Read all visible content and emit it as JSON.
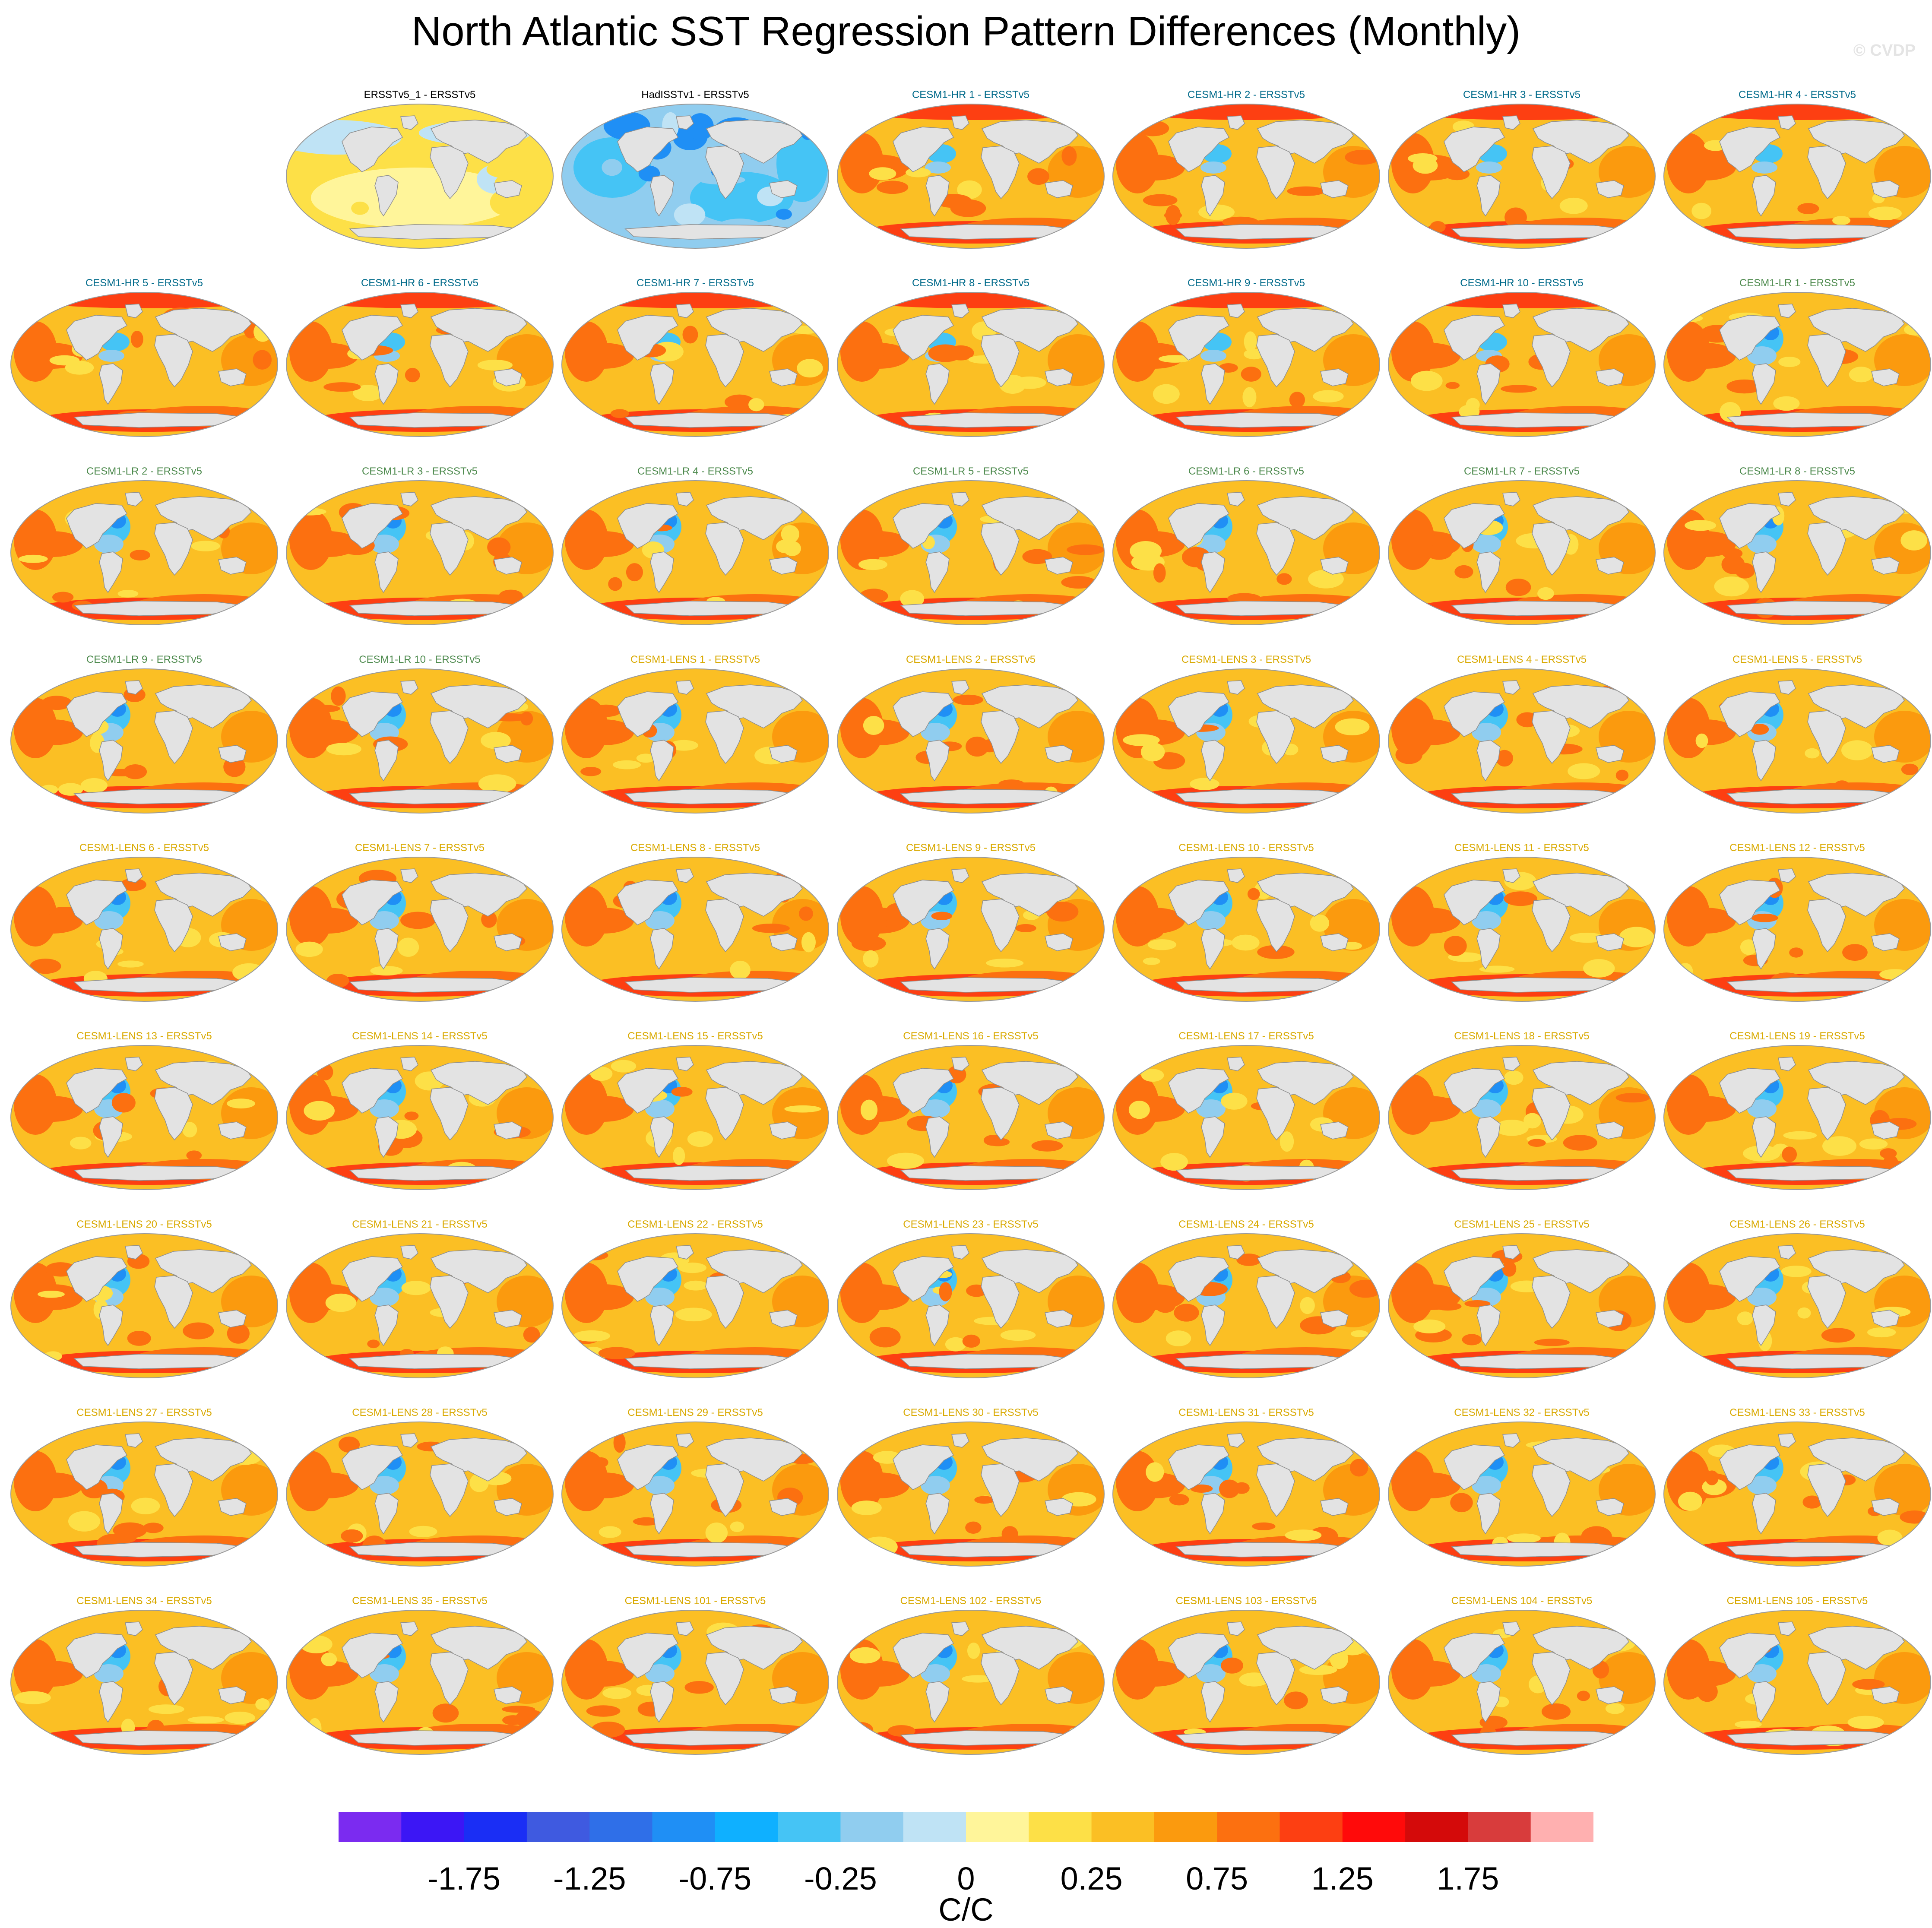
{
  "title": "North Atlantic SST Regression Pattern Differences (Monthly)",
  "copyright": "© CVDP",
  "colors": {
    "obs_title": "#000000",
    "hr_title": "#006a8a",
    "lr_title": "#4d8a4d",
    "lens_title": "#d9a900",
    "land": "#e3e3e3",
    "coast": "#8f8f8f"
  },
  "panels": [
    {
      "title": "ERSSTv5_1 - ERSSTv5",
      "group": "obs",
      "pattern": "obs1"
    },
    {
      "title": "HadISSTv1 - ERSSTv5",
      "group": "obs",
      "pattern": "obs2"
    },
    {
      "title": "CESM1-HR 1 - ERSSTv5",
      "group": "hr",
      "pattern": "hr"
    },
    {
      "title": "CESM1-HR 2 - ERSSTv5",
      "group": "hr",
      "pattern": "hr"
    },
    {
      "title": "CESM1-HR 3 - ERSSTv5",
      "group": "hr",
      "pattern": "hr"
    },
    {
      "title": "CESM1-HR 4 - ERSSTv5",
      "group": "hr",
      "pattern": "hr"
    },
    {
      "title": "CESM1-HR 5 - ERSSTv5",
      "group": "hr",
      "pattern": "hr"
    },
    {
      "title": "CESM1-HR 6 - ERSSTv5",
      "group": "hr",
      "pattern": "hr"
    },
    {
      "title": "CESM1-HR 7 - ERSSTv5",
      "group": "hr",
      "pattern": "hr"
    },
    {
      "title": "CESM1-HR 8 - ERSSTv5",
      "group": "hr",
      "pattern": "hr"
    },
    {
      "title": "CESM1-HR 9 - ERSSTv5",
      "group": "hr",
      "pattern": "hr"
    },
    {
      "title": "CESM1-HR 10 - ERSSTv5",
      "group": "hr",
      "pattern": "hr"
    },
    {
      "title": "CESM1-LR 1 - ERSSTv5",
      "group": "lr",
      "pattern": "lr"
    },
    {
      "title": "CESM1-LR 2 - ERSSTv5",
      "group": "lr",
      "pattern": "lr"
    },
    {
      "title": "CESM1-LR 3 - ERSSTv5",
      "group": "lr",
      "pattern": "lr"
    },
    {
      "title": "CESM1-LR 4 - ERSSTv5",
      "group": "lr",
      "pattern": "lr"
    },
    {
      "title": "CESM1-LR 5 - ERSSTv5",
      "group": "lr",
      "pattern": "lr"
    },
    {
      "title": "CESM1-LR 6 - ERSSTv5",
      "group": "lr",
      "pattern": "lr"
    },
    {
      "title": "CESM1-LR 7 - ERSSTv5",
      "group": "lr",
      "pattern": "lr"
    },
    {
      "title": "CESM1-LR 8 - ERSSTv5",
      "group": "lr",
      "pattern": "lr"
    },
    {
      "title": "CESM1-LR 9 - ERSSTv5",
      "group": "lr",
      "pattern": "lr"
    },
    {
      "title": "CESM1-LR 10 - ERSSTv5",
      "group": "lr",
      "pattern": "lr"
    },
    {
      "title": "CESM1-LENS 1 - ERSSTv5",
      "group": "lens",
      "pattern": "lens"
    },
    {
      "title": "CESM1-LENS 2 - ERSSTv5",
      "group": "lens",
      "pattern": "lens"
    },
    {
      "title": "CESM1-LENS 3 - ERSSTv5",
      "group": "lens",
      "pattern": "lens"
    },
    {
      "title": "CESM1-LENS 4 - ERSSTv5",
      "group": "lens",
      "pattern": "lens"
    },
    {
      "title": "CESM1-LENS 5 - ERSSTv5",
      "group": "lens",
      "pattern": "lens"
    },
    {
      "title": "CESM1-LENS 6 - ERSSTv5",
      "group": "lens",
      "pattern": "lens"
    },
    {
      "title": "CESM1-LENS 7 - ERSSTv5",
      "group": "lens",
      "pattern": "lens"
    },
    {
      "title": "CESM1-LENS 8 - ERSSTv5",
      "group": "lens",
      "pattern": "lens"
    },
    {
      "title": "CESM1-LENS 9 - ERSSTv5",
      "group": "lens",
      "pattern": "lens"
    },
    {
      "title": "CESM1-LENS 10 - ERSSTv5",
      "group": "lens",
      "pattern": "lens"
    },
    {
      "title": "CESM1-LENS 11 - ERSSTv5",
      "group": "lens",
      "pattern": "lens"
    },
    {
      "title": "CESM1-LENS 12 - ERSSTv5",
      "group": "lens",
      "pattern": "lens"
    },
    {
      "title": "CESM1-LENS 13 - ERSSTv5",
      "group": "lens",
      "pattern": "lens"
    },
    {
      "title": "CESM1-LENS 14 - ERSSTv5",
      "group": "lens",
      "pattern": "lens"
    },
    {
      "title": "CESM1-LENS 15 - ERSSTv5",
      "group": "lens",
      "pattern": "lens"
    },
    {
      "title": "CESM1-LENS 16 - ERSSTv5",
      "group": "lens",
      "pattern": "lens"
    },
    {
      "title": "CESM1-LENS 17 - ERSSTv5",
      "group": "lens",
      "pattern": "lens"
    },
    {
      "title": "CESM1-LENS 18 - ERSSTv5",
      "group": "lens",
      "pattern": "lens"
    },
    {
      "title": "CESM1-LENS 19 - ERSSTv5",
      "group": "lens",
      "pattern": "lens"
    },
    {
      "title": "CESM1-LENS 20 - ERSSTv5",
      "group": "lens",
      "pattern": "lens"
    },
    {
      "title": "CESM1-LENS 21 - ERSSTv5",
      "group": "lens",
      "pattern": "lens"
    },
    {
      "title": "CESM1-LENS 22 - ERSSTv5",
      "group": "lens",
      "pattern": "lens"
    },
    {
      "title": "CESM1-LENS 23 - ERSSTv5",
      "group": "lens",
      "pattern": "lens"
    },
    {
      "title": "CESM1-LENS 24 - ERSSTv5",
      "group": "lens",
      "pattern": "lens"
    },
    {
      "title": "CESM1-LENS 25 - ERSSTv5",
      "group": "lens",
      "pattern": "lens"
    },
    {
      "title": "CESM1-LENS 26 - ERSSTv5",
      "group": "lens",
      "pattern": "lens"
    },
    {
      "title": "CESM1-LENS 27 - ERSSTv5",
      "group": "lens",
      "pattern": "lens"
    },
    {
      "title": "CESM1-LENS 28 - ERSSTv5",
      "group": "lens",
      "pattern": "lens"
    },
    {
      "title": "CESM1-LENS 29 - ERSSTv5",
      "group": "lens",
      "pattern": "lens"
    },
    {
      "title": "CESM1-LENS 30 - ERSSTv5",
      "group": "lens",
      "pattern": "lens"
    },
    {
      "title": "CESM1-LENS 31 - ERSSTv5",
      "group": "lens",
      "pattern": "lens"
    },
    {
      "title": "CESM1-LENS 32 - ERSSTv5",
      "group": "lens",
      "pattern": "lens"
    },
    {
      "title": "CESM1-LENS 33 - ERSSTv5",
      "group": "lens",
      "pattern": "lens"
    },
    {
      "title": "CESM1-LENS 34 - ERSSTv5",
      "group": "lens",
      "pattern": "lens"
    },
    {
      "title": "CESM1-LENS 35 - ERSSTv5",
      "group": "lens",
      "pattern": "lens"
    },
    {
      "title": "CESM1-LENS 101 - ERSSTv5",
      "group": "lens",
      "pattern": "lens"
    },
    {
      "title": "CESM1-LENS 102 - ERSSTv5",
      "group": "lens",
      "pattern": "lens"
    },
    {
      "title": "CESM1-LENS 103 - ERSSTv5",
      "group": "lens",
      "pattern": "lens"
    },
    {
      "title": "CESM1-LENS 104 - ERSSTv5",
      "group": "lens",
      "pattern": "lens"
    },
    {
      "title": "CESM1-LENS 105 - ERSSTv5",
      "group": "lens",
      "pattern": "lens"
    }
  ],
  "colorbar": {
    "colors": [
      "#7b2bf0",
      "#3c16f5",
      "#1a2ef5",
      "#3f5ae0",
      "#2f6fe8",
      "#1f8ff5",
      "#0fb0ff",
      "#45c4f5",
      "#90cdef",
      "#bfe3f5",
      "#fff59a",
      "#fde047",
      "#fbbf24",
      "#fb9a0e",
      "#fc7010",
      "#fd3f12",
      "#ff0a0a",
      "#d40a0a",
      "#d83c3c",
      "#ffb0b0"
    ],
    "tick_labels": [
      "-1.75",
      "-1.25",
      "-0.75",
      "-0.25",
      "0",
      "0.25",
      "0.75",
      "1.25",
      "1.75"
    ],
    "units": "C/C"
  }
}
